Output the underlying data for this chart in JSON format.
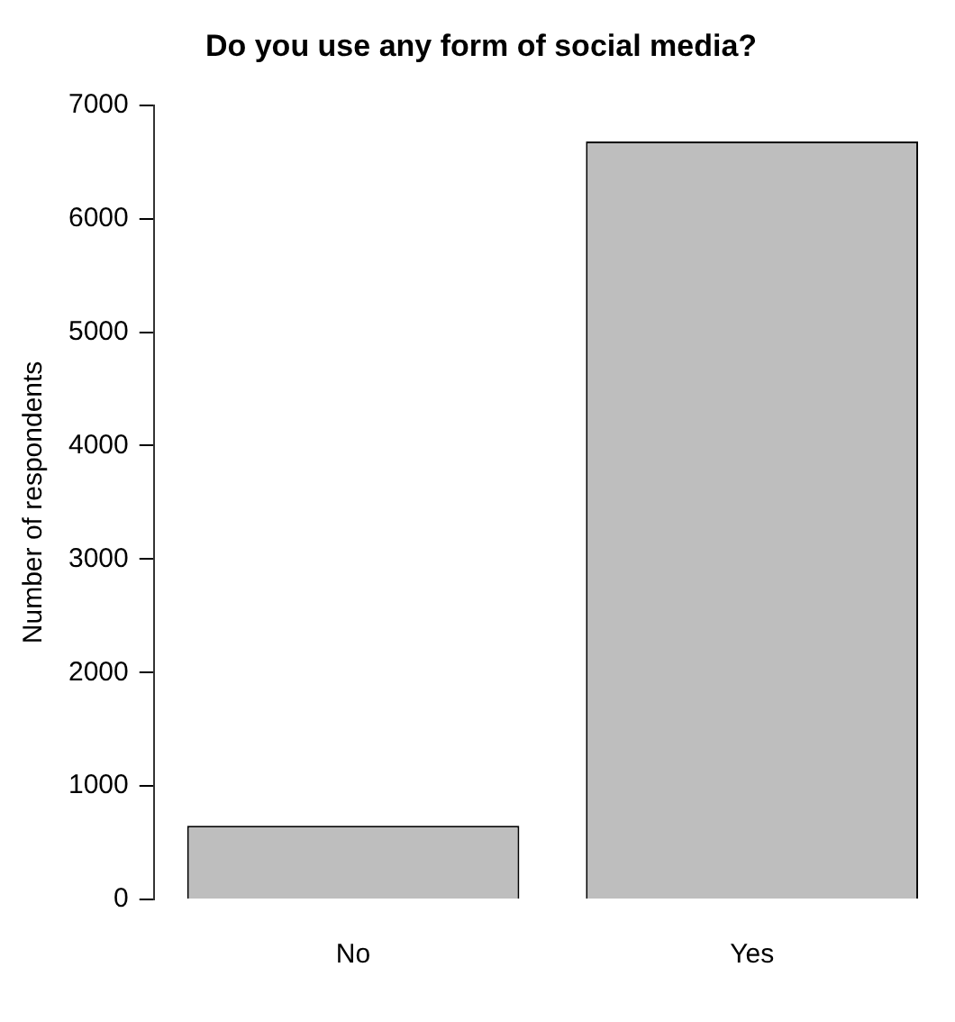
{
  "chart_data": {
    "type": "bar",
    "title": "Do you use any form of social media?",
    "ylabel": "Number of respondents",
    "categories": [
      "No",
      "Yes"
    ],
    "values": [
      650,
      6680
    ],
    "color": "#bebebe",
    "ylim": [
      0,
      7000
    ],
    "yticks": [
      0,
      1000,
      2000,
      3000,
      4000,
      5000,
      6000,
      7000
    ],
    "grid": false,
    "legend": false
  }
}
